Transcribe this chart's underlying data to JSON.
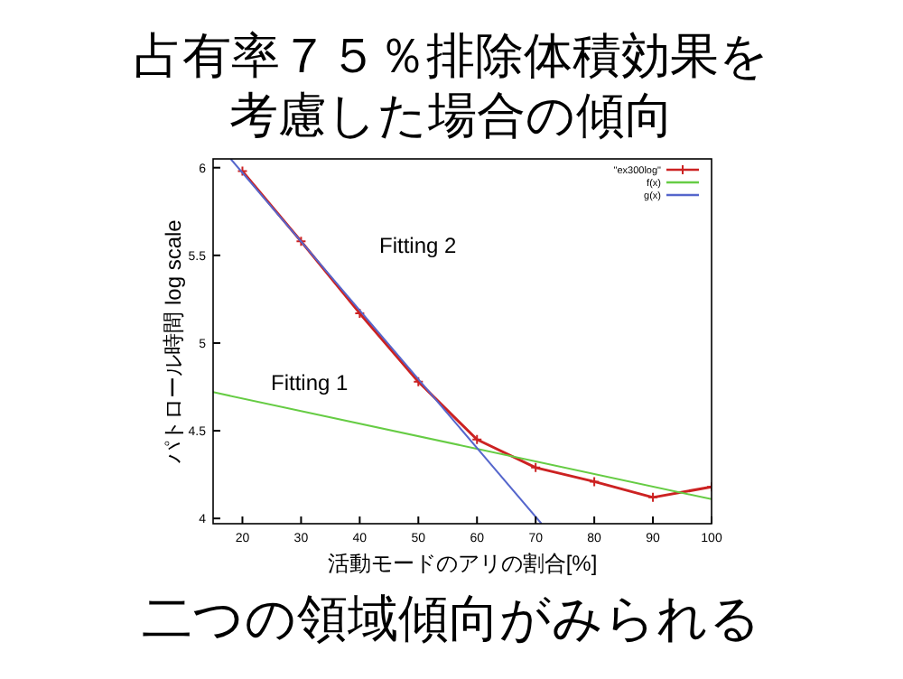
{
  "chart_data": {
    "type": "line",
    "title": "占有率７５％排除体積効果を考慮した場合の傾向",
    "xlabel": "活動モードのアリの割合[%]",
    "ylabel": "パトロール時間 log scale",
    "xlim": [
      15,
      100
    ],
    "ylim": [
      3.97,
      6.05
    ],
    "xticks": [
      20,
      30,
      40,
      50,
      60,
      70,
      80,
      90,
      100
    ],
    "yticks": [
      4,
      4.5,
      5,
      5.5,
      6
    ],
    "legend": "top right",
    "line_style": "solid",
    "series": [
      {
        "name": "\"ex300log\"",
        "color": "#cc2222",
        "marker": "cross",
        "x": [
          20,
          30,
          40,
          50,
          60,
          70,
          80,
          90,
          100
        ],
        "values": [
          5.98,
          5.58,
          5.17,
          4.78,
          4.45,
          4.29,
          4.21,
          4.12,
          4.18
        ]
      },
      {
        "name": "f(x)",
        "color": "#66cc44",
        "marker": "none",
        "x": [
          15,
          100
        ],
        "values": [
          4.72,
          4.11
        ]
      },
      {
        "name": "g(x)",
        "color": "#5566cc",
        "marker": "none",
        "x": [
          18,
          71
        ],
        "values": [
          6.05,
          3.97
        ]
      }
    ],
    "annotations": [
      "Fitting 2",
      "Fitting 1",
      "二つの領域傾向がみられる"
    ]
  }
}
